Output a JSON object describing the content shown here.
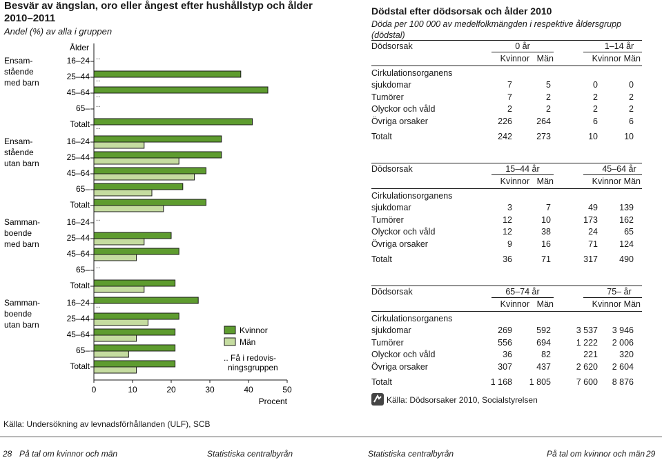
{
  "left_panel": {
    "title": "Besvär av ängslan, oro eller ångest efter hushållstyp och ålder 2010–2011",
    "subtitle": "Andel (%) av alla i gruppen",
    "source": "Källa: Undersökning av levnadsförhållanden (ULF), SCB"
  },
  "chart_data": {
    "type": "bar",
    "orientation": "horizontal",
    "title": "Besvär av ängslan, oro eller ångest efter hushållstyp och ålder 2010–2011",
    "subtitle": "Andel (%) av alla i gruppen",
    "age_header": "Ålder",
    "xlabel": "Procent",
    "xlim": [
      0,
      50
    ],
    "xticks": [
      0,
      10,
      20,
      30,
      40,
      50
    ],
    "grid": false,
    "legend": {
      "position": "bottom-right",
      "entries": [
        "Kvinnor",
        "Män"
      ]
    },
    "missing_note": ".. Få i redovisningsgruppen",
    "missing_symbol": "..",
    "colors": {
      "Kvinnor": "#5e9c2f",
      "Män": "#c5dca0"
    },
    "groups": [
      {
        "name": "Ensamstående med barn",
        "label_lines": [
          "Ensam-",
          "stående",
          "med barn"
        ],
        "categories": [
          "16–24",
          "25–44",
          "45–64",
          "65–",
          "Totalt"
        ],
        "series": [
          {
            "name": "Kvinnor",
            "values": [
              null,
              38,
              45,
              null,
              41
            ]
          },
          {
            "name": "Män",
            "values": [
              null,
              null,
              null,
              null,
              null
            ]
          }
        ]
      },
      {
        "name": "Ensamstående utan barn",
        "label_lines": [
          "Ensam-",
          "stående",
          "utan barn"
        ],
        "categories": [
          "16–24",
          "25–44",
          "45–64",
          "65–",
          "Totalt"
        ],
        "series": [
          {
            "name": "Kvinnor",
            "values": [
              33,
              33,
              29,
              23,
              29
            ]
          },
          {
            "name": "Män",
            "values": [
              13,
              22,
              26,
              15,
              18
            ]
          }
        ]
      },
      {
        "name": "Sammanboende med barn",
        "label_lines": [
          "Samman-",
          "boende",
          "med barn"
        ],
        "categories": [
          "16–24",
          "25–44",
          "45–64",
          "65–",
          "Totalt"
        ],
        "series": [
          {
            "name": "Kvinnor",
            "values": [
              null,
              20,
              22,
              null,
              21
            ]
          },
          {
            "name": "Män",
            "values": [
              null,
              13,
              11,
              null,
              13
            ]
          }
        ]
      },
      {
        "name": "Sammanboende utan barn",
        "label_lines": [
          "Samman-",
          "boende",
          "utan barn"
        ],
        "categories": [
          "16–24",
          "25–44",
          "45–64",
          "65–",
          "Totalt"
        ],
        "series": [
          {
            "name": "Kvinnor",
            "values": [
              27,
              22,
              21,
              21,
              21
            ]
          },
          {
            "name": "Män",
            "values": [
              null,
              14,
              11,
              9,
              11
            ]
          }
        ]
      }
    ]
  },
  "right_panel": {
    "title": "Dödstal efter dödsorsak och ålder 2010",
    "subtitle": "Döda per 100 000 av medelfolkmängden i respektive åldersgrupp (dödstal)",
    "source": "Källa: Dödsorsaker 2010, Socialstyrelsen",
    "col_header": "Dödsorsak",
    "sex_labels": [
      "Kvinnor",
      "Män"
    ],
    "cause_first_line": "Cirkulationsorganens",
    "tables": [
      {
        "age_groups": [
          "0 år",
          "1–14 år"
        ],
        "rows": [
          {
            "label": "sjukdomar",
            "values": [
              "7",
              "5",
              "0",
              "0"
            ]
          },
          {
            "label": "Tumörer",
            "values": [
              "7",
              "2",
              "2",
              "2"
            ]
          },
          {
            "label": "Olyckor och våld",
            "values": [
              "2",
              "2",
              "2",
              "2"
            ]
          },
          {
            "label": "Övriga orsaker",
            "values": [
              "226",
              "264",
              "6",
              "6"
            ]
          }
        ],
        "total": {
          "label": "Totalt",
          "values": [
            "242",
            "273",
            "10",
            "10"
          ]
        }
      },
      {
        "age_groups": [
          "15–44 år",
          "45–64 år"
        ],
        "rows": [
          {
            "label": "sjukdomar",
            "values": [
              "3",
              "7",
              "49",
              "139"
            ]
          },
          {
            "label": "Tumörer",
            "values": [
              "12",
              "10",
              "173",
              "162"
            ]
          },
          {
            "label": "Olyckor och våld",
            "values": [
              "12",
              "38",
              "24",
              "65"
            ]
          },
          {
            "label": "Övriga orsaker",
            "values": [
              "9",
              "16",
              "71",
              "124"
            ]
          }
        ],
        "total": {
          "label": "Totalt",
          "values": [
            "36",
            "71",
            "317",
            "490"
          ]
        }
      },
      {
        "age_groups": [
          "65–74 år",
          "75– år"
        ],
        "rows": [
          {
            "label": "sjukdomar",
            "values": [
              "269",
              "592",
              "3 537",
              "3 946"
            ]
          },
          {
            "label": "Tumörer",
            "values": [
              "556",
              "694",
              "1 222",
              "2 006"
            ]
          },
          {
            "label": "Olyckor och våld",
            "values": [
              "36",
              "82",
              "221",
              "320"
            ]
          },
          {
            "label": "Övriga orsaker",
            "values": [
              "307",
              "437",
              "2 620",
              "2 604"
            ]
          }
        ],
        "total": {
          "label": "Totalt",
          "values": [
            "1 168",
            "1 805",
            "7 600",
            "8 876"
          ]
        }
      }
    ]
  },
  "footer": {
    "left_page": "28",
    "left_pub": "På tal om kvinnor och män",
    "left_org": "Statistiska centralbyrån",
    "right_org": "Statistiska centralbyrån",
    "right_pub": "På tal om kvinnor och män",
    "right_page": "29"
  }
}
